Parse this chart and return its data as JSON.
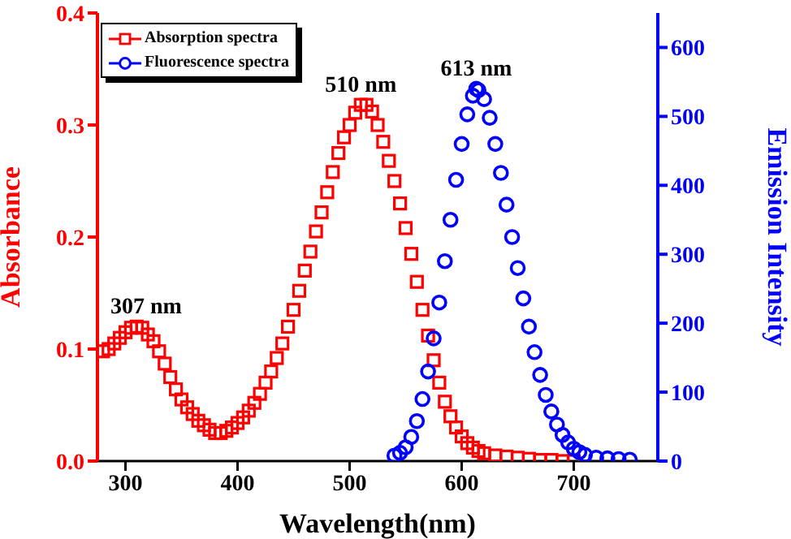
{
  "chart_data": {
    "type": "scatter",
    "xlabel": "Wavelength(nm)",
    "ylabel": "Absorbance",
    "y2label": "Emission Intensity",
    "xlim": [
      275,
      775
    ],
    "xticks": [
      300,
      400,
      500,
      600,
      700
    ],
    "ylim": [
      0,
      0.4
    ],
    "yticks": [
      {
        "value": 0,
        "label": "0.0"
      },
      0.1,
      0.2,
      0.3,
      0.4
    ],
    "y2lim": [
      0,
      650
    ],
    "y2ticks": [
      0,
      100,
      200,
      300,
      400,
      500,
      600
    ],
    "legend": "top left",
    "grid": false,
    "annotations": [
      {
        "text": "307 nm",
        "x": 307,
        "y": 0.12
      },
      {
        "text": "510 nm",
        "x": 510,
        "y": 0.318
      },
      "613 nm"
    ],
    "series": [
      {
        "name": "Absorption spectra",
        "color": "#ff0000",
        "marker": "square",
        "x": [
          280,
          285,
          290,
          295,
          300,
          305,
          310,
          315,
          320,
          325,
          330,
          335,
          340,
          345,
          350,
          355,
          360,
          365,
          370,
          375,
          380,
          385,
          390,
          395,
          400,
          405,
          410,
          415,
          420,
          425,
          430,
          435,
          440,
          445,
          450,
          455,
          460,
          465,
          470,
          475,
          480,
          485,
          490,
          495,
          500,
          505,
          510,
          515,
          520,
          525,
          530,
          535,
          540,
          545,
          550,
          555,
          560,
          565,
          570,
          575,
          580,
          585,
          590,
          595,
          600,
          605,
          610,
          615,
          620,
          630,
          640,
          650,
          660,
          670,
          680,
          690,
          700
        ],
        "values": [
          0.098,
          0.1,
          0.105,
          0.11,
          0.115,
          0.119,
          0.12,
          0.119,
          0.113,
          0.107,
          0.098,
          0.087,
          0.075,
          0.064,
          0.055,
          0.048,
          0.042,
          0.036,
          0.032,
          0.028,
          0.025,
          0.025,
          0.027,
          0.03,
          0.034,
          0.039,
          0.045,
          0.052,
          0.06,
          0.07,
          0.08,
          0.092,
          0.105,
          0.12,
          0.135,
          0.152,
          0.17,
          0.187,
          0.205,
          0.222,
          0.24,
          0.258,
          0.275,
          0.289,
          0.3,
          0.311,
          0.318,
          0.318,
          0.312,
          0.3,
          0.285,
          0.268,
          0.25,
          0.23,
          0.208,
          0.185,
          0.16,
          0.135,
          0.112,
          0.09,
          0.07,
          0.053,
          0.04,
          0.03,
          0.022,
          0.016,
          0.012,
          0.009,
          0.007,
          0.005,
          0.004,
          0.003,
          0.002,
          0.001,
          0.001,
          0,
          0
        ]
      },
      {
        "name": "Fluorescence spectra",
        "color": "#0000ff",
        "marker": "circle",
        "axis": "y2",
        "x": [
          540,
          545,
          550,
          555,
          560,
          565,
          570,
          575,
          580,
          585,
          590,
          595,
          600,
          605,
          610,
          613,
          615,
          620,
          625,
          630,
          635,
          640,
          645,
          650,
          655,
          660,
          665,
          670,
          675,
          680,
          685,
          690,
          695,
          700,
          705,
          710,
          720,
          730,
          740,
          750
        ],
        "values": [
          8,
          12,
          20,
          35,
          58,
          90,
          130,
          178,
          230,
          290,
          350,
          408,
          460,
          503,
          530,
          540,
          538,
          525,
          498,
          460,
          418,
          372,
          325,
          280,
          236,
          195,
          158,
          125,
          96,
          72,
          53,
          38,
          27,
          18,
          13,
          9,
          5,
          4,
          3,
          2
        ]
      }
    ]
  }
}
